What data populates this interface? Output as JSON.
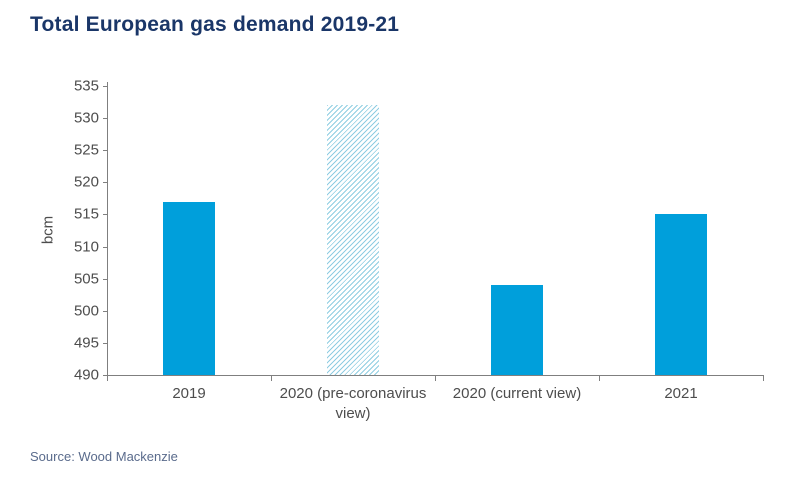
{
  "title": "Total European gas demand 2019-21",
  "source": "Source: Wood Mackenzie",
  "chart_data": {
    "type": "bar",
    "title": "Total European gas demand 2019-21",
    "categories": [
      "2019",
      "2020 (pre-coronavirus view)",
      "2020 (current view)",
      "2021"
    ],
    "values": [
      517,
      532,
      504,
      515
    ],
    "bar_styles": [
      "solid",
      "hatched",
      "solid",
      "solid"
    ],
    "xlabel": "",
    "ylabel": "bcm",
    "ylim": [
      490,
      535
    ],
    "ytick_step": 5,
    "grid": false,
    "legend": "none",
    "source": "Source: Wood Mackenzie"
  },
  "colors": {
    "title_text": "#1A3668",
    "bar_solid": "#009FDB",
    "bar_hatch_line": "#8FCDE2",
    "bar_hatch_bg": "#FFFFFF",
    "axis_line": "#7F7F7F",
    "tick_label_text": "#4D4D4D",
    "source_text": "#5A6B8C",
    "background": "#FFFFFF"
  }
}
